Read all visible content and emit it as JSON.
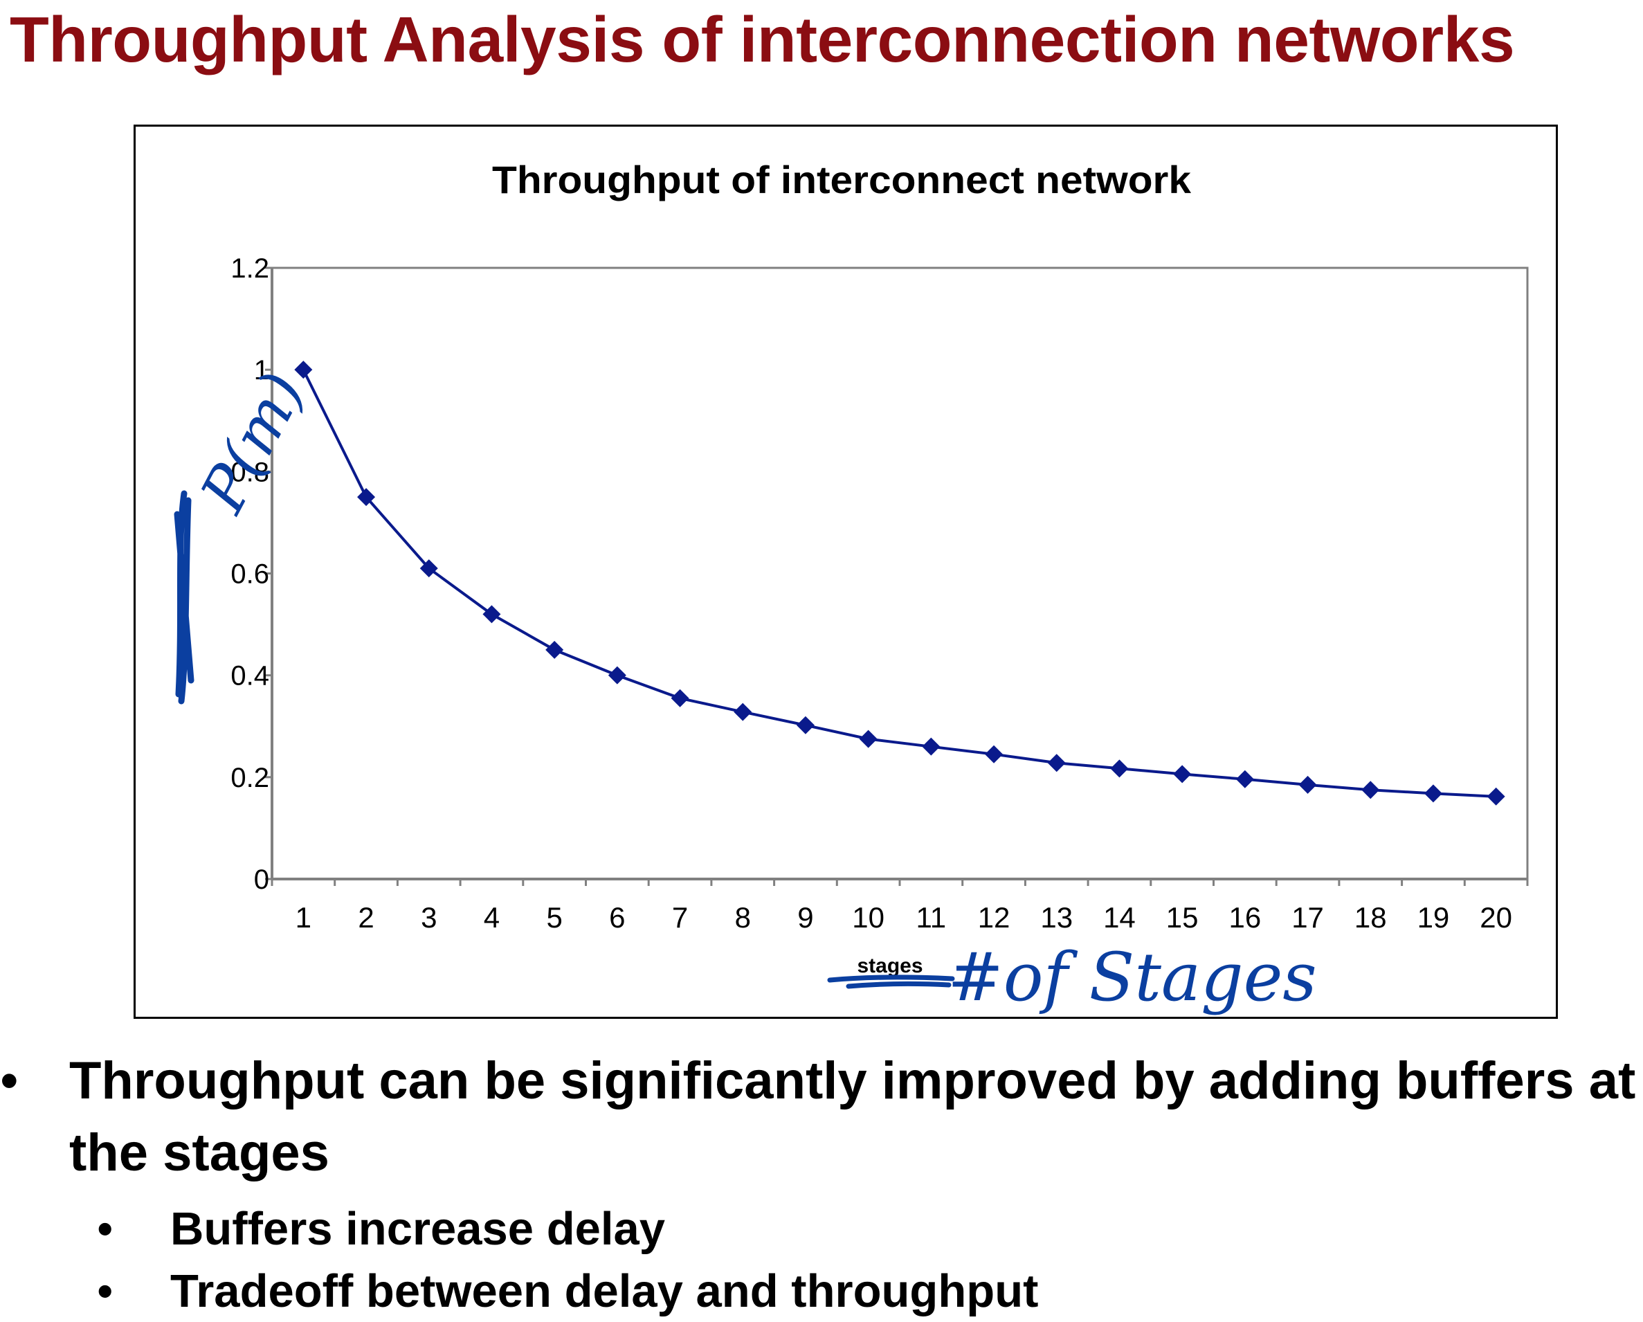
{
  "slide": {
    "title": "Throughput Analysis of interconnection networks",
    "bullets": [
      {
        "level": 1,
        "marker": "•",
        "lines": [
          "Throughput can be significantly improved by adding buffers at",
          "the stages"
        ]
      },
      {
        "level": 2,
        "marker": "•",
        "lines": [
          "Buffers increase delay"
        ]
      },
      {
        "level": 2,
        "marker": "•",
        "lines": [
          "Tradeoff between delay and throughput"
        ]
      }
    ],
    "colors": {
      "title": "#8b0d12",
      "series": "#0a1a8c",
      "ink": "#0b3fa0",
      "text": "#000000"
    }
  },
  "chart_data": {
    "type": "line",
    "title": "Throughput of interconnect network",
    "xlabel": "stages",
    "ylabel": "",
    "categories": [
      "1",
      "2",
      "3",
      "4",
      "5",
      "6",
      "7",
      "8",
      "9",
      "10",
      "11",
      "12",
      "13",
      "14",
      "15",
      "16",
      "17",
      "18",
      "19",
      "20"
    ],
    "series": [
      {
        "name": "",
        "marker": "diamond",
        "values": [
          1.0,
          0.75,
          0.61,
          0.52,
          0.45,
          0.4,
          0.355,
          0.328,
          0.302,
          0.275,
          0.26,
          0.245,
          0.228,
          0.217,
          0.206,
          0.196,
          0.185,
          0.175,
          0.168,
          0.162
        ]
      }
    ],
    "ylim": [
      0,
      1.2
    ],
    "yticks": [
      "0",
      "0.2",
      "0.4",
      "0.6",
      "0.8",
      "1",
      "1.2"
    ],
    "grid": false,
    "legend": "none",
    "annotations": {
      "y_handwritten": "P(m)",
      "x_handwritten": "#of Stages"
    }
  }
}
